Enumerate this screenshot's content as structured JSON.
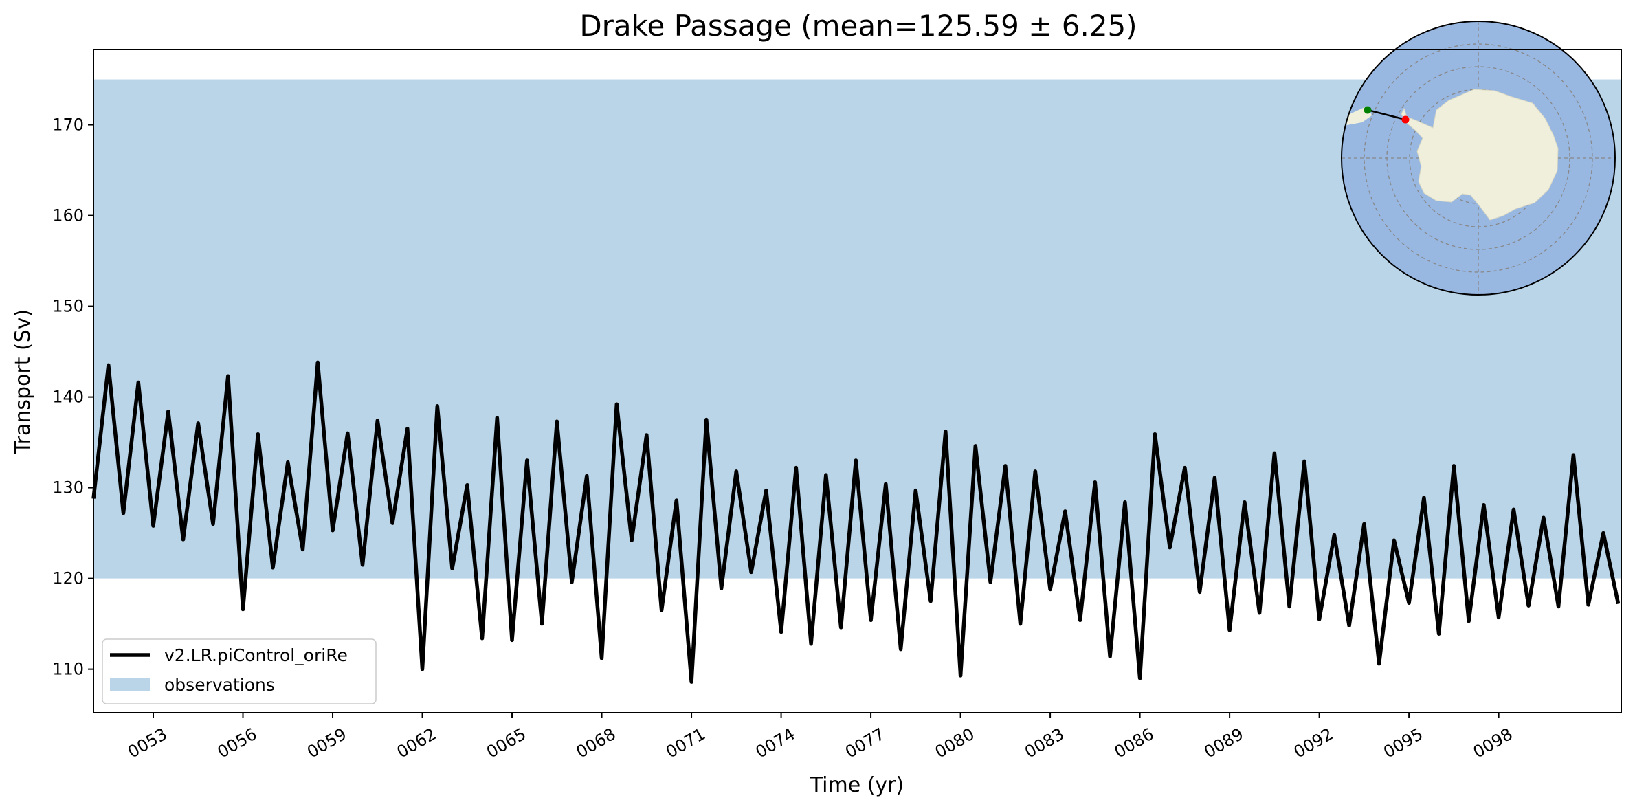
{
  "chart_data": {
    "type": "line",
    "title": "Drake Passage (mean=125.59 ± 6.25)",
    "xlabel": "Time (yr)",
    "ylabel": "Transport (Sv)",
    "xlim": [
      51.0,
      102.1
    ],
    "ylim": [
      105.2,
      178.3
    ],
    "xticks": [
      "0053",
      "0056",
      "0059",
      "0062",
      "0065",
      "0068",
      "0071",
      "0074",
      "0077",
      "0080",
      "0083",
      "0086",
      "0089",
      "0092",
      "0095",
      "0098"
    ],
    "yticks": [
      "110",
      "120",
      "130",
      "140",
      "150",
      "160",
      "170"
    ],
    "grid": false,
    "legend": {
      "position": "bottom-left",
      "entries": [
        "v2.LR.piControl_oriRe",
        "observations"
      ]
    },
    "series": [
      {
        "name": "v2.LR.piControl_oriRe",
        "color": "#000000",
        "x": [
          51.0,
          51.5,
          52.0,
          52.5,
          53.0,
          53.5,
          54.0,
          54.5,
          55.0,
          55.5,
          56.0,
          56.5,
          57.0,
          57.5,
          58.0,
          58.5,
          59.0,
          59.5,
          60.0,
          60.5,
          61.0,
          61.5,
          62.0,
          62.5,
          63.0,
          63.5,
          64.0,
          64.5,
          65.0,
          65.5,
          66.0,
          66.5,
          67.0,
          67.5,
          68.0,
          68.5,
          69.0,
          69.5,
          70.0,
          70.5,
          71.0,
          71.5,
          72.0,
          72.5,
          73.0,
          73.5,
          74.0,
          74.5,
          75.0,
          75.5,
          76.0,
          76.5,
          77.0,
          77.5,
          78.0,
          78.5,
          79.0,
          79.5,
          80.0,
          80.5,
          81.0,
          81.5,
          82.0,
          82.5,
          83.0,
          83.5,
          84.0,
          84.5,
          85.0,
          85.5,
          86.0,
          86.5,
          87.0,
          87.5,
          88.0,
          88.5,
          89.0,
          89.5,
          90.0,
          90.5,
          91.0,
          91.5,
          92.0,
          92.5,
          93.0,
          93.5,
          94.0,
          94.5,
          95.0,
          95.5,
          96.0,
          96.5,
          97.0,
          97.5,
          98.0,
          98.5,
          99.0,
          99.5,
          100.0,
          100.5,
          101.0,
          101.5,
          102.0
        ],
        "values": [
          128.8,
          143.5,
          127.2,
          141.6,
          125.8,
          138.4,
          124.3,
          137.1,
          126.0,
          142.3,
          116.6,
          135.9,
          121.2,
          132.8,
          123.2,
          143.8,
          125.3,
          136.0,
          121.5,
          137.4,
          126.1,
          136.5,
          110.0,
          139.0,
          121.1,
          130.3,
          113.4,
          137.7,
          113.2,
          133.0,
          115.0,
          137.3,
          119.6,
          131.3,
          111.2,
          139.2,
          124.2,
          135.8,
          116.5,
          128.6,
          108.6,
          137.5,
          118.9,
          131.8,
          120.7,
          129.7,
          114.1,
          132.2,
          112.8,
          131.4,
          114.6,
          133.0,
          115.4,
          130.4,
          112.2,
          129.7,
          117.5,
          136.2,
          109.3,
          134.6,
          119.6,
          132.4,
          115.0,
          131.8,
          118.8,
          127.4,
          115.4,
          130.6,
          111.4,
          128.4,
          109.0,
          135.9,
          123.4,
          132.2,
          118.5,
          131.1,
          114.3,
          128.4,
          116.2,
          133.8,
          116.9,
          132.9,
          115.5,
          124.8,
          114.8,
          126.0,
          110.6,
          124.2,
          117.3,
          128.9,
          113.9,
          132.4,
          115.3,
          128.1,
          115.7,
          127.6,
          117.0,
          126.7,
          116.9,
          133.6,
          117.1,
          125.0,
          117.2
        ]
      }
    ],
    "band": {
      "name": "observations",
      "color": "#bad5e8",
      "ymin": 120.0,
      "ymax": 175.0
    },
    "inset_map": {
      "description": "polar-map",
      "ocean_color": "#98b7e1",
      "land_color": "#efefdb",
      "start_point_color": "#008000",
      "end_point_color": "#ff0000"
    }
  }
}
